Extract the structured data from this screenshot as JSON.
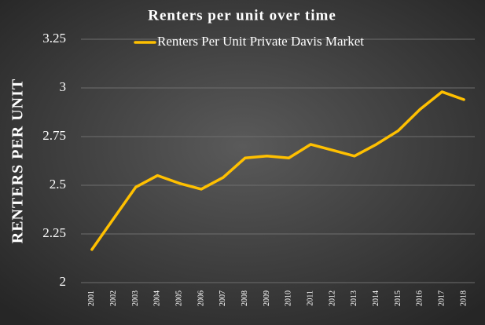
{
  "chart_data": {
    "type": "line",
    "title": "Renters per unit over time",
    "y_label": "RENTERS PER UNIT",
    "categories": [
      "2001",
      "2002",
      "2003",
      "2004",
      "2005",
      "2006",
      "2007",
      "2008",
      "2009",
      "2010",
      "2011",
      "2012",
      "2013",
      "2014",
      "2015",
      "2016",
      "2017",
      "2018"
    ],
    "series": [
      {
        "name": "Renters Per Unit Private Davis Market",
        "color": "#ffc000",
        "values": [
          2.17,
          2.33,
          2.49,
          2.55,
          2.51,
          2.48,
          2.54,
          2.64,
          2.65,
          2.64,
          2.71,
          2.68,
          2.65,
          2.71,
          2.78,
          2.89,
          2.98,
          2.94
        ]
      }
    ],
    "ylim": [
      2,
      3.25
    ],
    "yticks": [
      2,
      2.25,
      2.5,
      2.75,
      3,
      3.25
    ],
    "grid": true,
    "legend": "top"
  }
}
